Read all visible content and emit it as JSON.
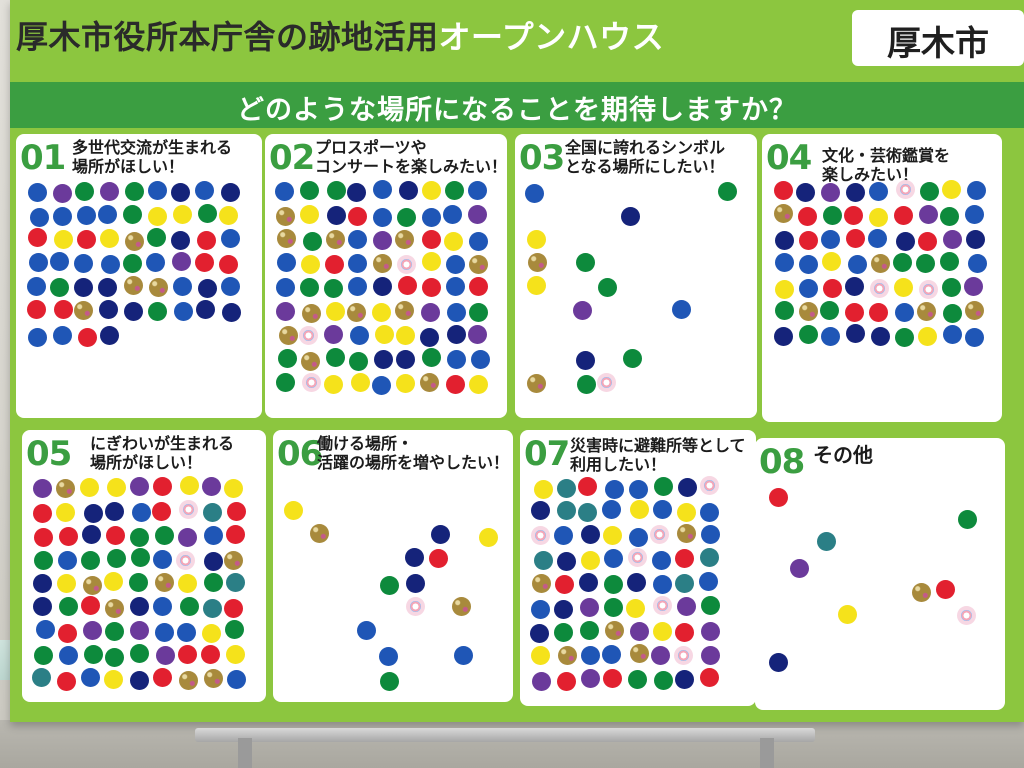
{
  "board": {
    "title_dark": "厚木市役所本庁舎の跡地活用",
    "title_light": "オープンハウス",
    "city": "厚木市",
    "question": "どのような場所になることを期待しますか？"
  },
  "colors": {
    "board_green": "#8cc63f",
    "banner_green": "#3b9e41",
    "blue": "#1f56b6",
    "navy": "#15237a",
    "green": "#0d8a3c",
    "red": "#e2202f",
    "yellow": "#f5e21b",
    "purple": "#6b3a9b",
    "teal": "#2b7f86",
    "glitter": "#a88a3c"
  },
  "panels": [
    {
      "num": "01",
      "label": "多世代交流が生まれる\n場所がほしい！",
      "counts": {
        "blue": 19,
        "navy": 11,
        "red": 8,
        "green": 8,
        "yellow": 5,
        "purple": 3,
        "glitter": 4
      }
    },
    {
      "num": "02",
      "label": "プロスポーツや\nコンサートを楽しみたい！",
      "counts": {
        "blue": 20,
        "navy": 9,
        "red": 9,
        "green": 13,
        "yellow": 14,
        "purple": 6,
        "glitter": 12,
        "sticker": 3
      }
    },
    {
      "num": "03",
      "label": "全国に誇れるシンボル\nとなる場所にしたい！",
      "counts": {
        "blue": 2,
        "navy": 2,
        "green": 5,
        "yellow": 2,
        "purple": 1,
        "glitter": 2,
        "sticker": 1
      }
    },
    {
      "num": "04",
      "label": "文化・芸術鑑賞を\n楽しみたい！",
      "counts": {
        "blue": 14,
        "navy": 9,
        "red": 10,
        "green": 12,
        "yellow": 6,
        "purple": 4,
        "glitter": 5,
        "sticker": 3
      }
    },
    {
      "num": "05",
      "label": "にぎわいが生まれる\n場所がほしい！",
      "counts": {
        "blue": 22,
        "navy": 14,
        "red": 26,
        "green": 30,
        "yellow": 22,
        "purple": 10,
        "teal": 8,
        "glitter": 12,
        "sticker": 4
      }
    },
    {
      "num": "06",
      "label": "働ける場所・\n活躍の場所を増やしたい！",
      "counts": {
        "blue": 3,
        "navy": 3,
        "red": 1,
        "green": 2,
        "yellow": 2,
        "glitter": 2,
        "sticker": 1
      }
    },
    {
      "num": "07",
      "label": "災害時に避難所等として\n利用したい！",
      "counts": {
        "blue": 16,
        "navy": 14,
        "red": 8,
        "green": 10,
        "yellow": 10,
        "purple": 8,
        "teal": 10,
        "glitter": 8,
        "sticker": 6
      }
    },
    {
      "num": "08",
      "label": "その他",
      "counts": {
        "navy": 1,
        "red": 2,
        "green": 1,
        "yellow": 1,
        "purple": 1,
        "teal": 1,
        "glitter": 1,
        "sticker": 1
      }
    }
  ]
}
